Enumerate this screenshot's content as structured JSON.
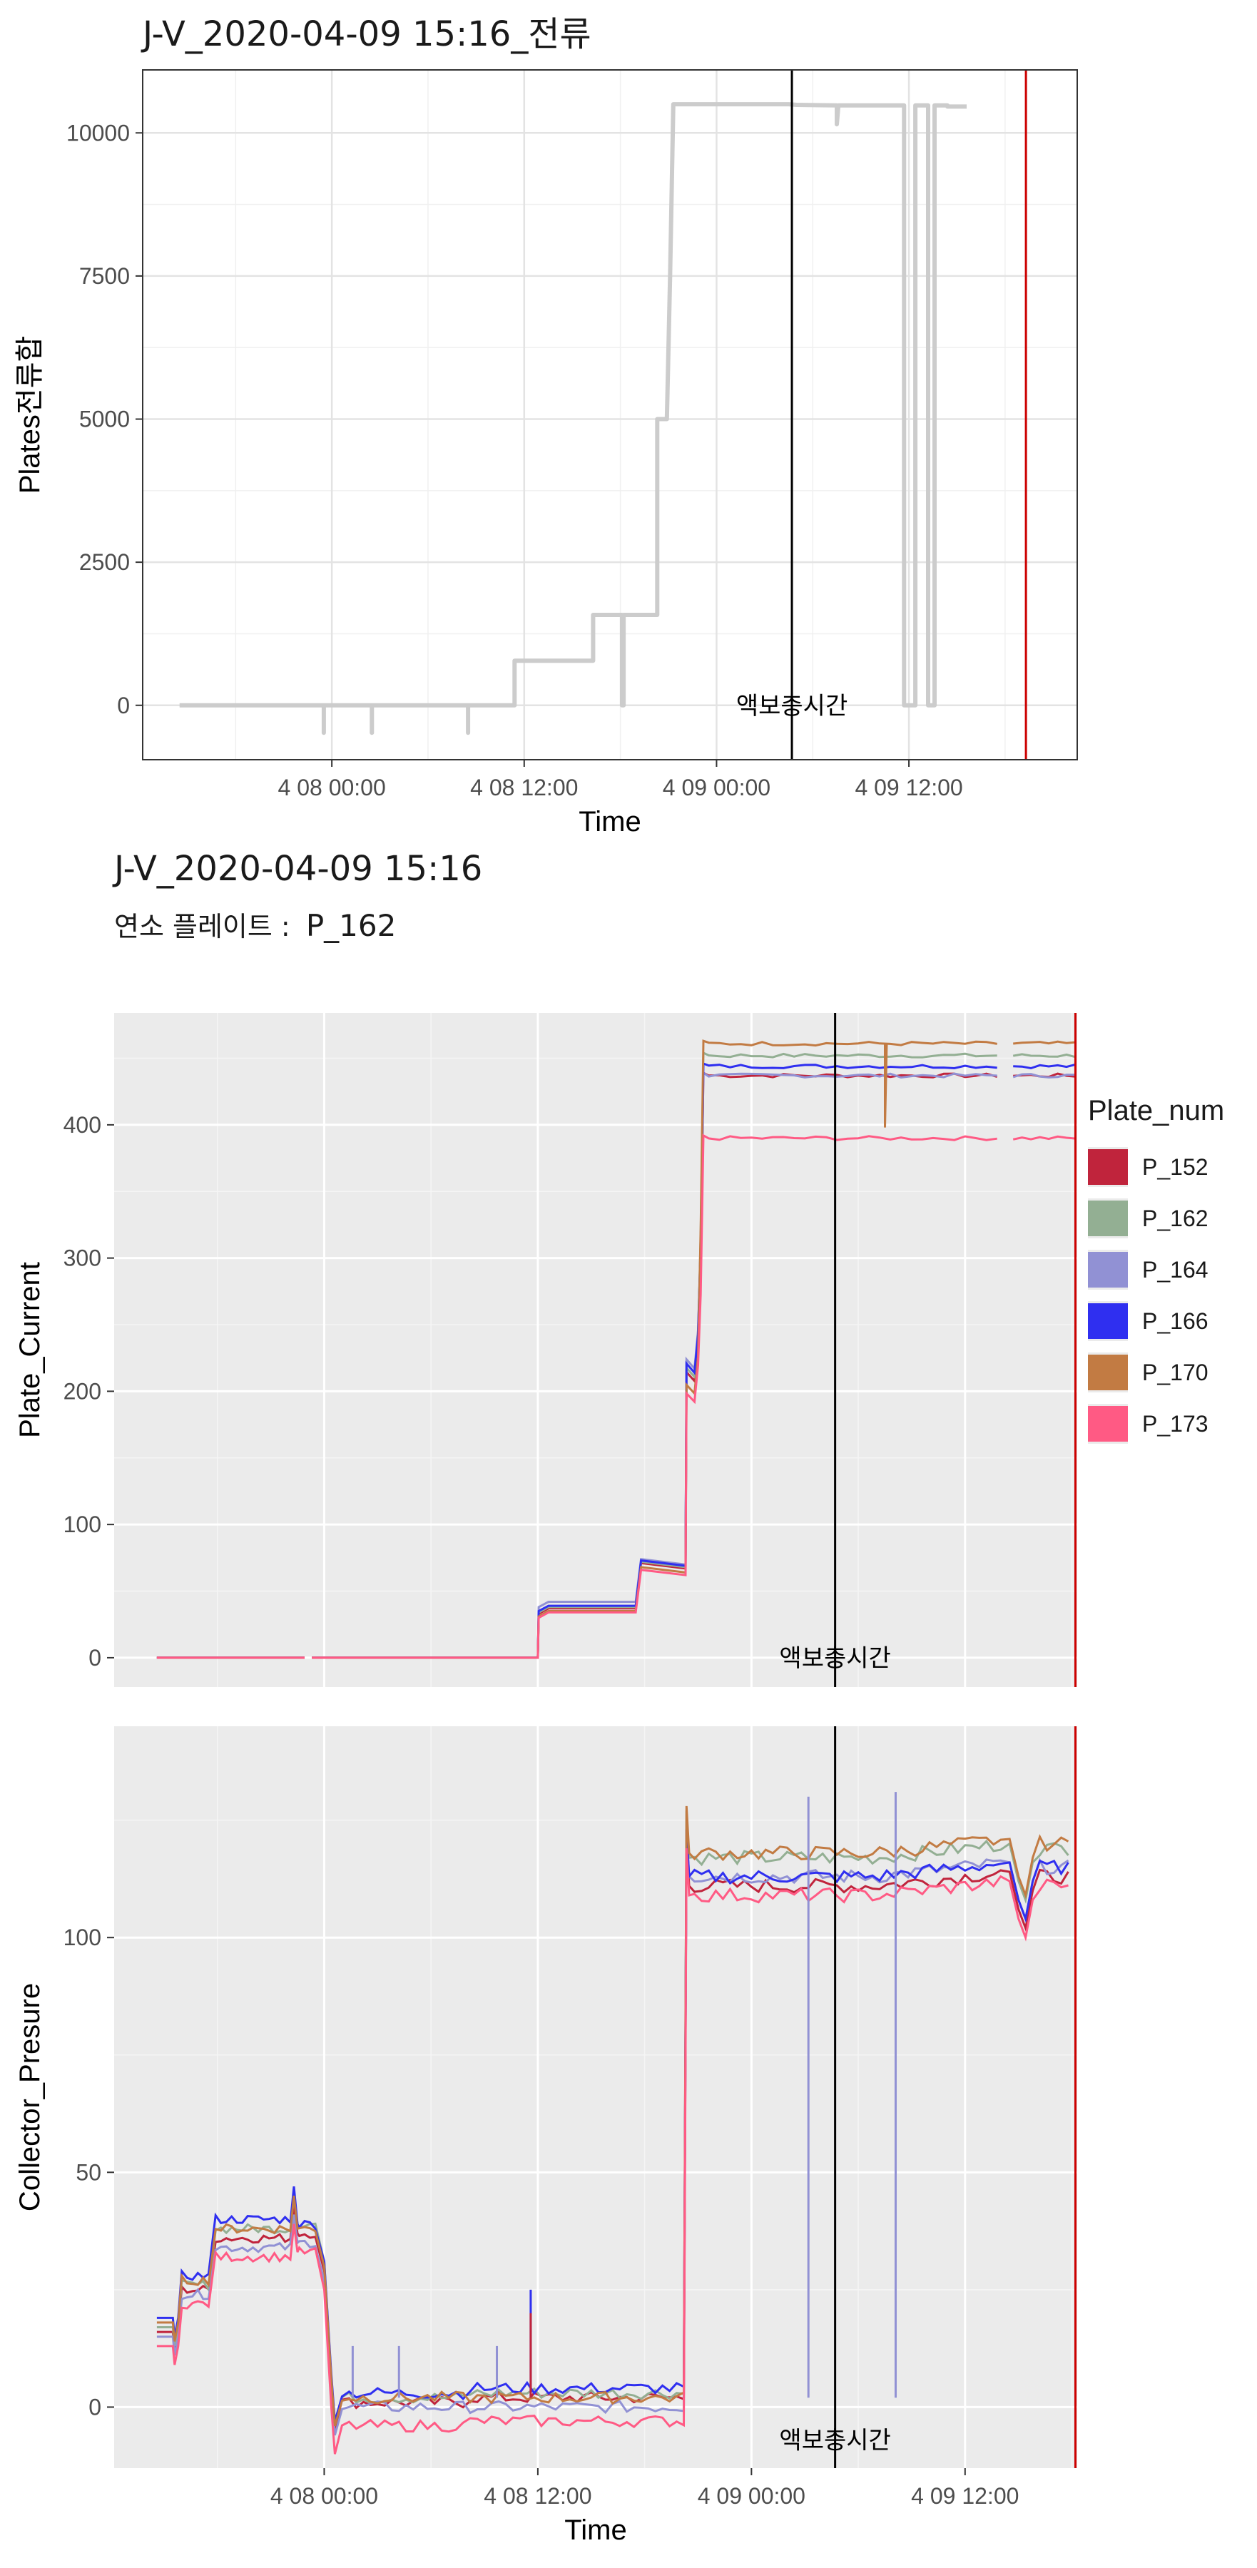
{
  "chart_data": [
    {
      "type": "line",
      "title": "J-V_2020-04-09 15:16_전류",
      "xlabel": "Time",
      "ylabel": "Plates전류합",
      "x_ticks": [
        "4 08 00:00",
        "4 08 12:00",
        "4 09 00:00",
        "4 09 12:00"
      ],
      "x_tick_hours": [
        24,
        36,
        48,
        60
      ],
      "x_range_hours": [
        15,
        68
      ],
      "xlim_hours": [
        12.2,
        70.5
      ],
      "y_ticks": [
        0,
        2500,
        5000,
        7500,
        10000
      ],
      "ylim": [
        -950,
        11100
      ],
      "vlines": [
        {
          "hour": 52.7,
          "color": "#000000"
        },
        {
          "hour": 67.3,
          "color": "#cc0000"
        }
      ],
      "annotation": {
        "text": "액보충시간",
        "hour": 52.7,
        "value": 0
      },
      "grid": true,
      "background": "white",
      "series": [
        {
          "color": "#cccccc",
          "points": [
            [
              14.5,
              0
            ],
            [
              22,
              0
            ],
            [
              23.5,
              0
            ],
            [
              23.5,
              -480
            ],
            [
              23.5,
              0
            ],
            [
              26.5,
              0
            ],
            [
              26.5,
              -480
            ],
            [
              26.5,
              0
            ],
            [
              32.5,
              0
            ],
            [
              32.5,
              -480
            ],
            [
              32.5,
              0
            ],
            [
              35.4,
              0
            ],
            [
              35.4,
              780
            ],
            [
              38,
              780
            ],
            [
              38,
              780
            ],
            [
              40.3,
              780
            ],
            [
              40.3,
              1580
            ],
            [
              42.1,
              1580
            ],
            [
              42.1,
              0
            ],
            [
              42.2,
              0
            ],
            [
              42.2,
              1580
            ],
            [
              44.3,
              1580
            ],
            [
              44.3,
              5000
            ],
            [
              44.9,
              5000
            ],
            [
              45.1,
              7500
            ],
            [
              45.3,
              10500
            ],
            [
              52.5,
              10500
            ],
            [
              53,
              10490
            ],
            [
              55.5,
              10480
            ],
            [
              55.5,
              10150
            ],
            [
              55.6,
              10480
            ],
            [
              59.7,
              10480
            ],
            [
              59.7,
              0
            ],
            [
              60.4,
              0
            ],
            [
              60.4,
              10480
            ],
            [
              61.2,
              10480
            ],
            [
              61.2,
              0
            ],
            [
              61.6,
              0
            ],
            [
              61.6,
              10480
            ],
            [
              62.4,
              10480
            ],
            [
              62.4,
              10460
            ],
            [
              63.6,
              10460
            ]
          ]
        }
      ]
    },
    {
      "type": "line",
      "title": "J-V_2020-04-09 15:16",
      "subtitle_label": "연소 플레이트 :",
      "subtitle_value": "P_162",
      "ylabel": "Plate_Current",
      "y_ticks": [
        0,
        100,
        200,
        300,
        400
      ],
      "ylim": [
        -22,
        484
      ],
      "xlim_hours": [
        12.2,
        66.3
      ],
      "x_tick_hours": [
        24,
        36,
        48,
        60
      ],
      "vlines": [
        {
          "hour": 52.7,
          "color": "#000000"
        },
        {
          "hour": 66.2,
          "color": "#cc0000"
        }
      ],
      "annotation": {
        "text": "액보충시간",
        "hour": 52.7,
        "value": 0
      },
      "grid": true,
      "legend_title": "Plate_num",
      "series": [
        {
          "name": "P_152",
          "color": "#c0243c",
          "final": 437,
          "step36": 33,
          "step42": 67
        },
        {
          "name": "P_162",
          "color": "#93af93",
          "final": 452,
          "step36": 34,
          "step42": 68
        },
        {
          "name": "P_164",
          "color": "#9191d4",
          "final": 437,
          "step36": 38,
          "step42": 70
        },
        {
          "name": "P_166",
          "color": "#2f2ff0",
          "final": 444,
          "step36": 35,
          "step42": 69
        },
        {
          "name": "P_170",
          "color": "#c27b43",
          "final": 461,
          "step36": 31,
          "step42": 64
        },
        {
          "name": "P_173",
          "color": "#ff5a84",
          "final": 390,
          "step36": 30,
          "step42": 62
        }
      ],
      "current_profile_hours": [
        [
          14.6,
          0
        ],
        [
          22.9,
          0
        ],
        [
          23.3,
          0
        ],
        [
          36,
          0
        ],
        [
          36.1,
          1
        ],
        [
          44.3,
          1
        ],
        [
          44.4,
          3.3
        ],
        [
          45.1,
          6.3
        ],
        [
          45.3,
          8
        ],
        [
          45.5,
          9
        ]
      ]
    },
    {
      "type": "line",
      "xlabel": "Time",
      "ylabel": "Collector_Presure",
      "x_ticks": [
        "4 08 00:00",
        "4 08 12:00",
        "4 09 00:00",
        "4 09 12:00"
      ],
      "x_tick_hours": [
        24,
        36,
        48,
        60
      ],
      "y_ticks": [
        0,
        50,
        100
      ],
      "ylim": [
        -13,
        145
      ],
      "xlim_hours": [
        12.2,
        66.3
      ],
      "vlines": [
        {
          "hour": 52.7,
          "color": "#000000"
        },
        {
          "hour": 66.2,
          "color": "#cc0000"
        }
      ],
      "annotation": {
        "text": "액보충시간",
        "hour": 52.7,
        "value": -7
      },
      "grid": true,
      "series": [
        {
          "name": "P_152",
          "color": "#c0243c",
          "base": [
            16,
            25,
            36,
            37,
            1,
            2,
            111
          ]
        },
        {
          "name": "P_162",
          "color": "#93af93",
          "base": [
            17,
            26,
            38,
            39,
            2,
            3,
            117
          ]
        },
        {
          "name": "P_164",
          "color": "#9191d4",
          "base": [
            15,
            24,
            34,
            35,
            0,
            0,
            113
          ]
        },
        {
          "name": "P_166",
          "color": "#2f2ff0",
          "base": [
            19,
            28,
            40,
            39,
            3,
            4,
            113
          ]
        },
        {
          "name": "P_170",
          "color": "#c27b43",
          "base": [
            18,
            27,
            38,
            38,
            2,
            2,
            118
          ]
        },
        {
          "name": "P_173",
          "color": "#ff5a84",
          "base": [
            13,
            22,
            32,
            33,
            -4,
            -3,
            109
          ]
        }
      ]
    }
  ]
}
